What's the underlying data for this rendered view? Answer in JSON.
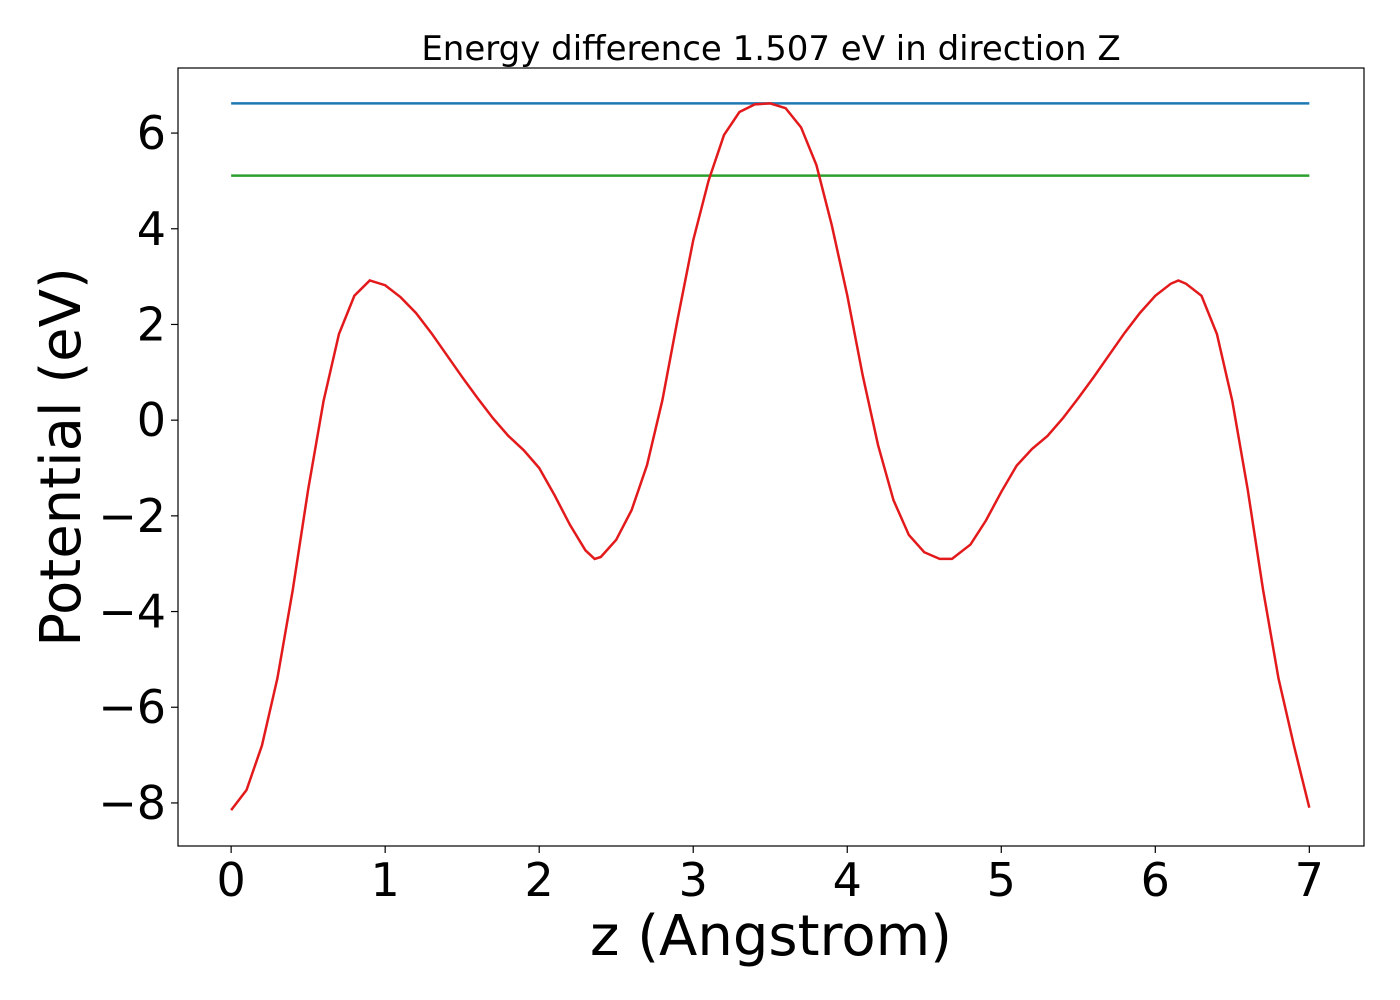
{
  "chart_data": {
    "type": "line",
    "title": "Energy difference 1.507 eV in direction Z",
    "x_label": "z (Angstrom)",
    "y_label": "Potential (eV)",
    "xlim": [
      -0.345,
      7.355
    ],
    "ylim": [
      -8.9,
      7.36
    ],
    "xticks": [
      0,
      1,
      2,
      3,
      4,
      5,
      6,
      7
    ],
    "yticks": [
      {
        "value": -8,
        "label": "−8"
      },
      {
        "value": -6,
        "label": "−6"
      },
      {
        "value": -4,
        "label": "−4"
      },
      {
        "value": -2,
        "label": "−2"
      },
      0,
      2,
      4,
      6
    ],
    "series": [
      {
        "color": "#1f77b4",
        "x": [
          0,
          7
        ],
        "values": [
          6.62,
          6.62
        ]
      },
      {
        "color": "#2ca02c",
        "x": [
          0,
          7
        ],
        "values": [
          5.11,
          5.11
        ]
      },
      {
        "color": "#e31a1c",
        "x": [
          0,
          0.1,
          0.2,
          0.3,
          0.4,
          0.5,
          0.6,
          0.7,
          0.8,
          0.9,
          1.0,
          1.1,
          1.2,
          1.3,
          1.4,
          1.5,
          1.6,
          1.7,
          1.8,
          1.9,
          2.0,
          2.1,
          2.2,
          2.3,
          2.36,
          2.4,
          2.5,
          2.6,
          2.7,
          2.8,
          2.9,
          3.0,
          3.1,
          3.2,
          3.3,
          3.4,
          3.5,
          3.6,
          3.7,
          3.8,
          3.9,
          4.0,
          4.1,
          4.2,
          4.3,
          4.4,
          4.5,
          4.6,
          4.68,
          4.8,
          4.9,
          5.0,
          5.1,
          5.2,
          5.3,
          5.4,
          5.5,
          5.6,
          5.7,
          5.8,
          5.9,
          6.0,
          6.1,
          6.15,
          6.2,
          6.3,
          6.4,
          6.5,
          6.6,
          6.7,
          6.8,
          6.9,
          7.0
        ],
        "values": [
          -8.15,
          -7.73,
          -6.8,
          -5.4,
          -3.55,
          -1.45,
          0.4,
          1.8,
          2.6,
          2.92,
          2.82,
          2.57,
          2.24,
          1.82,
          1.36,
          0.9,
          0.46,
          0.04,
          -0.33,
          -0.63,
          -1.0,
          -1.57,
          -2.19,
          -2.72,
          -2.9,
          -2.86,
          -2.5,
          -1.88,
          -0.94,
          0.42,
          2.13,
          3.76,
          5.01,
          5.96,
          6.44,
          6.6,
          6.62,
          6.52,
          6.12,
          5.33,
          4.07,
          2.61,
          0.94,
          -0.52,
          -1.67,
          -2.4,
          -2.76,
          -2.9,
          -2.9,
          -2.6,
          -2.1,
          -1.5,
          -0.95,
          -0.6,
          -0.33,
          0.04,
          0.46,
          0.9,
          1.36,
          1.82,
          2.24,
          2.6,
          2.85,
          2.92,
          2.85,
          2.6,
          1.8,
          0.4,
          -1.45,
          -3.55,
          -5.4,
          -6.8,
          -8.1
        ]
      }
    ]
  }
}
